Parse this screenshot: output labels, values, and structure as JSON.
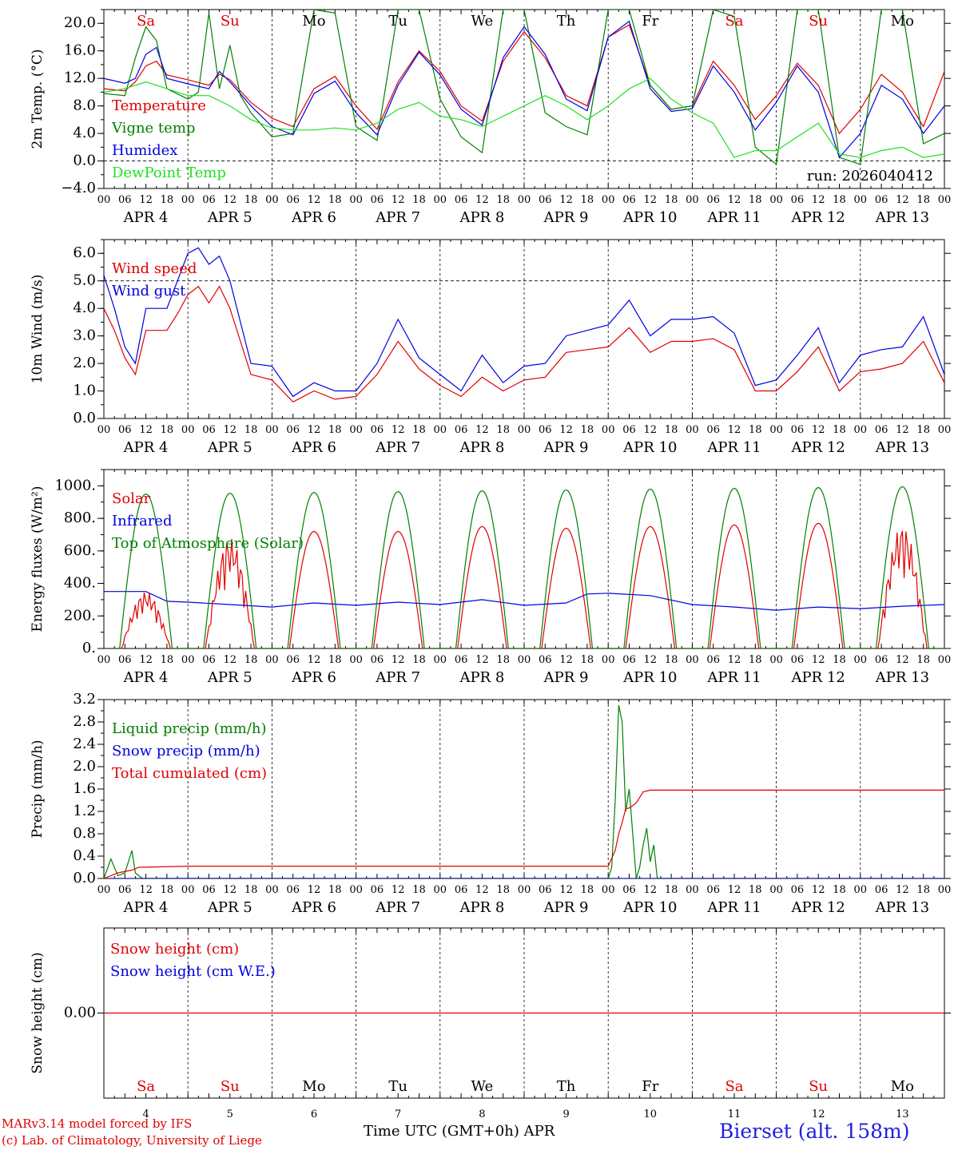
{
  "footer": {
    "model_line": "MARv3.14 model forced by IFS",
    "credit_line": "(c) Lab. of Climatology, University of Liege",
    "xlabel": "Time UTC (GMT+0h) APR",
    "station": "Bierset (alt. 158m)"
  },
  "days": {
    "names": [
      "Sa",
      "Su",
      "Mo",
      "Tu",
      "We",
      "Th",
      "Fr",
      "Sa",
      "Su",
      "Mo"
    ],
    "weekend": [
      true,
      true,
      false,
      false,
      false,
      false,
      false,
      true,
      true,
      false
    ],
    "date_labels": [
      "APR  4",
      "APR  5",
      "APR  6",
      "APR  7",
      "APR  8",
      "APR  9",
      "APR 10",
      "APR 11",
      "APR 12",
      "APR 13"
    ],
    "bottom_numbers": [
      "4",
      "5",
      "6",
      "7",
      "8",
      "9",
      "10",
      "11",
      "12",
      "13"
    ],
    "hour_ticks": [
      "00",
      "06",
      "12",
      "18"
    ],
    "final_tick": "00"
  },
  "colors": {
    "red": "#e00000",
    "green": "#008000",
    "blue": "#0000e0",
    "lightgreen": "#20e020",
    "weekend": "#e00000",
    "weekday": "#000000"
  },
  "chart_data": [
    {
      "type": "line",
      "ylabel": "2m Temp. (°C)",
      "ylim": [
        -4,
        22
      ],
      "yticks": [
        "20.0",
        "16.0",
        "12.0",
        "8.0",
        "4.0",
        "0.0",
        "−4.0"
      ],
      "ytick_values": [
        20,
        16,
        12,
        8,
        4,
        0,
        -4
      ],
      "refline": 0,
      "run_label": "run: 2026040412",
      "x_unit": "hours since APR 4 00 UTC",
      "series": [
        {
          "name": "Temperature",
          "color": "#e00000",
          "x": [
            0,
            6,
            9,
            12,
            15,
            18,
            24,
            30,
            33,
            36,
            42,
            48,
            54,
            60,
            66,
            72,
            78,
            84,
            90,
            96,
            102,
            108,
            114,
            120,
            126,
            132,
            138,
            144,
            150,
            156,
            162,
            168,
            174,
            180,
            186,
            192,
            198,
            204,
            210,
            216,
            222,
            228,
            234,
            240
          ],
          "y": [
            10.5,
            10.2,
            11.5,
            13.8,
            14.5,
            12.5,
            11.8,
            11.0,
            12.6,
            11.8,
            8.5,
            6.2,
            5.0,
            10.5,
            12.3,
            8.0,
            4.6,
            11.5,
            16.0,
            13.0,
            8.0,
            5.8,
            14.5,
            18.8,
            15.0,
            9.5,
            8.0,
            18.0,
            19.8,
            11.0,
            7.5,
            8.0,
            14.5,
            11.0,
            6.0,
            9.5,
            14.2,
            11.0,
            4.0,
            7.5,
            12.6,
            10.0,
            5.0,
            13.0
          ]
        },
        {
          "name": "Vigne temp",
          "color": "#008000",
          "x": [
            0,
            6,
            9,
            12,
            15,
            18,
            24,
            27,
            30,
            33,
            36,
            39,
            42,
            48,
            54,
            60,
            66,
            72,
            78,
            84,
            90,
            96,
            102,
            108,
            114,
            120,
            126,
            132,
            138,
            144,
            150,
            156,
            162,
            168,
            174,
            180,
            186,
            192,
            198,
            204,
            210,
            216,
            222,
            228,
            234,
            240
          ],
          "y": [
            9.8,
            9.5,
            15.0,
            19.5,
            17.5,
            10.5,
            9.0,
            10.0,
            21.5,
            10.5,
            16.8,
            9.5,
            7.0,
            3.5,
            4.0,
            22.0,
            21.5,
            5.0,
            3.0,
            22.0,
            22.0,
            9.0,
            3.5,
            1.2,
            22.0,
            22.0,
            7.0,
            5.0,
            3.8,
            22.0,
            22.0,
            11.0,
            7.5,
            8.0,
            22.0,
            21.0,
            2.0,
            -0.5,
            22.0,
            22.0,
            0.5,
            -0.5,
            22.0,
            22.0,
            2.5,
            4.0
          ]
        },
        {
          "name": "Humidex",
          "color": "#0000e0",
          "x": [
            0,
            6,
            9,
            12,
            15,
            18,
            24,
            30,
            33,
            36,
            42,
            48,
            54,
            60,
            66,
            72,
            78,
            84,
            90,
            96,
            102,
            108,
            114,
            120,
            126,
            132,
            138,
            144,
            150,
            156,
            162,
            168,
            174,
            180,
            186,
            192,
            198,
            204,
            210,
            216,
            222,
            228,
            234,
            240
          ],
          "y": [
            12.0,
            11.3,
            12.0,
            15.5,
            16.5,
            12.0,
            11.2,
            10.5,
            13.0,
            11.5,
            8.0,
            5.0,
            3.8,
            9.8,
            11.6,
            7.0,
            3.8,
            11.0,
            15.8,
            12.5,
            7.5,
            5.2,
            15.0,
            19.5,
            15.5,
            9.0,
            7.3,
            18.0,
            20.3,
            10.5,
            7.2,
            7.6,
            13.8,
            10.0,
            4.5,
            8.5,
            13.8,
            10.0,
            0.5,
            4.0,
            11.0,
            9.0,
            4.0,
            8.0
          ]
        },
        {
          "name": "DewPoint Temp",
          "color": "#20e020",
          "x": [
            0,
            6,
            12,
            18,
            24,
            30,
            36,
            42,
            48,
            54,
            60,
            66,
            72,
            78,
            84,
            90,
            96,
            102,
            108,
            114,
            120,
            126,
            132,
            138,
            144,
            150,
            156,
            162,
            168,
            174,
            180,
            186,
            192,
            198,
            204,
            210,
            216,
            222,
            228,
            234,
            240
          ],
          "y": [
            10.0,
            10.5,
            11.5,
            10.5,
            9.5,
            9.5,
            8.0,
            6.0,
            4.8,
            4.5,
            4.5,
            4.8,
            4.5,
            5.5,
            7.5,
            8.5,
            6.5,
            6.0,
            5.0,
            6.5,
            8.0,
            9.5,
            8.0,
            6.0,
            8.0,
            10.5,
            12.0,
            9.0,
            7.0,
            5.5,
            0.5,
            1.5,
            1.5,
            3.5,
            5.5,
            1.0,
            0.5,
            1.5,
            2.0,
            0.5,
            1.0
          ]
        }
      ]
    },
    {
      "type": "line",
      "ylabel": "10m Wind (m/s)",
      "ylim": [
        0,
        6.5
      ],
      "yticks": [
        "6.0",
        "5.0",
        "4.0",
        "3.0",
        "2.0",
        "1.0",
        "0.0"
      ],
      "ytick_values": [
        6,
        5,
        4,
        3,
        2,
        1,
        0
      ],
      "refline": 5,
      "x_unit": "hours since APR 4 00 UTC",
      "series": [
        {
          "name": "Wind speed",
          "color": "#e00000",
          "x": [
            0,
            3,
            6,
            9,
            12,
            18,
            21,
            24,
            27,
            30,
            33,
            36,
            42,
            48,
            54,
            60,
            66,
            72,
            78,
            84,
            90,
            96,
            102,
            108,
            114,
            120,
            126,
            132,
            138,
            144,
            150,
            156,
            162,
            168,
            174,
            180,
            186,
            192,
            198,
            204,
            210,
            216,
            222,
            228,
            234,
            240
          ],
          "y": [
            4.0,
            3.2,
            2.2,
            1.6,
            3.2,
            3.2,
            3.8,
            4.5,
            4.8,
            4.2,
            4.8,
            4.0,
            1.6,
            1.4,
            0.6,
            1.0,
            0.7,
            0.8,
            1.6,
            2.8,
            1.8,
            1.2,
            0.8,
            1.5,
            1.0,
            1.4,
            1.5,
            2.4,
            2.5,
            2.6,
            3.3,
            2.4,
            2.8,
            2.8,
            2.9,
            2.5,
            1.0,
            1.0,
            1.7,
            2.6,
            1.0,
            1.7,
            1.8,
            2.0,
            2.8,
            1.3
          ]
        },
        {
          "name": "Wind gust",
          "color": "#0000e0",
          "x": [
            0,
            3,
            6,
            9,
            12,
            18,
            21,
            24,
            27,
            30,
            33,
            36,
            42,
            48,
            54,
            60,
            66,
            72,
            78,
            84,
            90,
            96,
            102,
            108,
            114,
            120,
            126,
            132,
            138,
            144,
            150,
            156,
            162,
            168,
            174,
            180,
            186,
            192,
            198,
            204,
            210,
            216,
            222,
            228,
            234,
            240
          ],
          "y": [
            5.2,
            4.0,
            2.6,
            2.0,
            4.0,
            4.0,
            5.0,
            6.0,
            6.2,
            5.6,
            5.9,
            5.0,
            2.0,
            1.9,
            0.8,
            1.3,
            1.0,
            1.0,
            2.0,
            3.6,
            2.2,
            1.6,
            1.0,
            2.3,
            1.3,
            1.9,
            2.0,
            3.0,
            3.2,
            3.4,
            4.3,
            3.0,
            3.6,
            3.6,
            3.7,
            3.1,
            1.2,
            1.4,
            2.3,
            3.3,
            1.3,
            2.3,
            2.5,
            2.6,
            3.7,
            1.6
          ]
        }
      ]
    },
    {
      "type": "line",
      "ylabel": "Energy fluxes (W/m²)",
      "ylim": [
        0,
        1100
      ],
      "yticks": [
        "1000.",
        "800.",
        "600.",
        "400.",
        "200.",
        "0."
      ],
      "ytick_values": [
        1000,
        800,
        600,
        400,
        200,
        0
      ],
      "x_unit": "hours since APR 4 00 UTC",
      "series": [
        {
          "name": "Solar",
          "color": "#e00000",
          "diurnal_peaks": [
            {
              "day": 0,
              "peak": 350,
              "ragged": true
            },
            {
              "day": 1,
              "peak": 680,
              "ragged": true
            },
            {
              "day": 2,
              "peak": 720
            },
            {
              "day": 3,
              "peak": 720
            },
            {
              "day": 4,
              "peak": 750
            },
            {
              "day": 5,
              "peak": 740
            },
            {
              "day": 6,
              "peak": 750
            },
            {
              "day": 7,
              "peak": 760
            },
            {
              "day": 8,
              "peak": 770
            },
            {
              "day": 9,
              "peak": 760,
              "ragged": true
            }
          ],
          "daylight_hours": [
            5,
            19
          ]
        },
        {
          "name": "Infrared",
          "color": "#0000e0",
          "x": [
            0,
            12,
            18,
            24,
            36,
            48,
            60,
            72,
            84,
            96,
            108,
            120,
            132,
            138,
            144,
            156,
            168,
            180,
            192,
            204,
            216,
            228,
            240
          ],
          "y": [
            350,
            350,
            290,
            285,
            270,
            255,
            280,
            265,
            285,
            270,
            300,
            265,
            280,
            335,
            340,
            325,
            270,
            255,
            235,
            255,
            245,
            260,
            270
          ]
        },
        {
          "name": "Top of Atmosphere (Solar)",
          "color": "#008000",
          "diurnal_peaks": [
            {
              "day": 0,
              "peak": 950
            },
            {
              "day": 1,
              "peak": 955
            },
            {
              "day": 2,
              "peak": 960
            },
            {
              "day": 3,
              "peak": 965
            },
            {
              "day": 4,
              "peak": 970
            },
            {
              "day": 5,
              "peak": 975
            },
            {
              "day": 6,
              "peak": 980
            },
            {
              "day": 7,
              "peak": 985
            },
            {
              "day": 8,
              "peak": 990
            },
            {
              "day": 9,
              "peak": 995
            }
          ],
          "daylight_hours": [
            4.5,
            19.5
          ]
        }
      ]
    },
    {
      "type": "line",
      "ylabel": "Precip (mm/h)",
      "ylim": [
        0,
        3.2
      ],
      "yticks": [
        "3.2",
        "2.8",
        "2.4",
        "2.0",
        "1.6",
        "1.2",
        "0.8",
        "0.4",
        "0.0"
      ],
      "ytick_values": [
        3.2,
        2.8,
        2.4,
        2.0,
        1.6,
        1.2,
        0.8,
        0.4,
        0.0
      ],
      "x_unit": "hours since APR 4 00 UTC",
      "series": [
        {
          "name": "Liquid precip (mm/h)",
          "color": "#008000",
          "x": [
            0,
            2,
            4,
            6,
            8,
            9,
            11,
            12,
            14,
            144,
            145,
            146,
            147,
            148,
            149,
            150,
            151,
            152,
            153,
            154,
            155,
            156,
            157,
            158,
            159,
            160,
            161,
            162,
            240
          ],
          "y": [
            0,
            0.35,
            0.05,
            0.1,
            0.5,
            0.1,
            0,
            0,
            0,
            0,
            0.2,
            1.4,
            3.1,
            2.8,
            1.2,
            1.6,
            0.8,
            0,
            0.2,
            0.6,
            0.9,
            0.3,
            0.6,
            0,
            0,
            0,
            0,
            0,
            0
          ]
        },
        {
          "name": "Snow precip (mm/h)",
          "color": "#0000e0",
          "x": [
            0,
            240
          ],
          "y": [
            0,
            0
          ]
        },
        {
          "name": "Total cumulated (cm)",
          "color": "#e00000",
          "x": [
            0,
            4,
            8,
            10,
            24,
            144,
            146,
            147,
            148,
            149,
            150,
            152,
            154,
            156,
            240
          ],
          "y": [
            0,
            0.1,
            0.15,
            0.2,
            0.22,
            0.22,
            0.5,
            0.8,
            1.0,
            1.25,
            1.26,
            1.35,
            1.55,
            1.58,
            1.58
          ]
        }
      ]
    },
    {
      "type": "line",
      "ylabel": "Snow height (cm)",
      "ylim": [
        -1,
        1
      ],
      "yticks": [
        "0.00"
      ],
      "ytick_values": [
        0
      ],
      "x_unit": "hours since APR 4 00 UTC",
      "series": [
        {
          "name": "Snow height (cm)",
          "color": "#e00000",
          "x": [
            0,
            240
          ],
          "y": [
            0,
            0
          ]
        },
        {
          "name": "Snow height (cm W.E.)",
          "color": "#0000e0",
          "x": [],
          "y": []
        }
      ]
    }
  ]
}
